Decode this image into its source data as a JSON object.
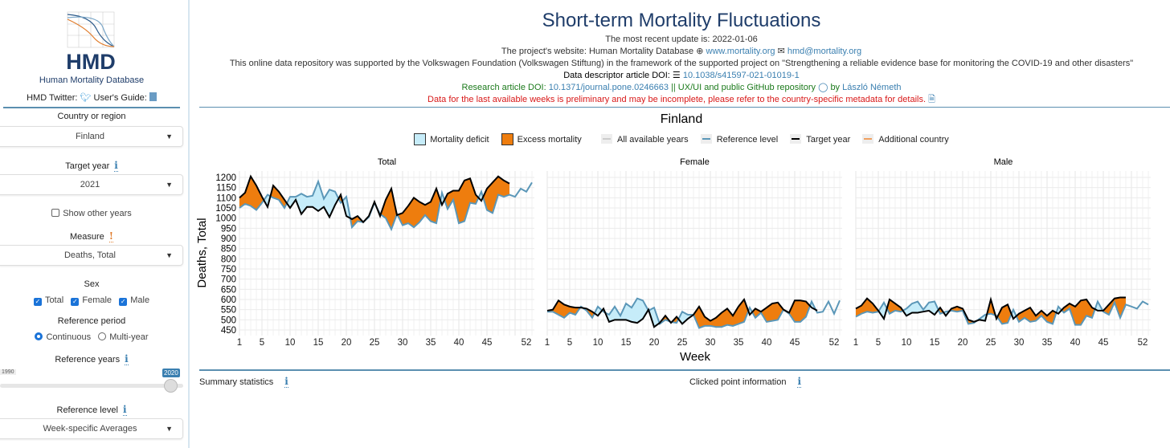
{
  "sidebar": {
    "logo_text": "HMD",
    "db_name": "Human Mortality Database",
    "twitter_label": "HMD Twitter:",
    "guide_label": "User's Guide:",
    "country_label": "Country or region",
    "country_value": "Finland",
    "target_year_label": "Target year",
    "target_year_value": "2021",
    "show_other_years": "Show other years",
    "measure_label": "Measure",
    "measure_value": "Deaths, Total",
    "sex_label": "Sex",
    "sex_total": "Total",
    "sex_female": "Female",
    "sex_male": "Male",
    "ref_period_label": "Reference period",
    "ref_continuous": "Continuous",
    "ref_multiyear": "Multi-year",
    "ref_years_label": "Reference years",
    "ref_years_min": "1990",
    "ref_years_max": "2020",
    "ref_level_label": "Reference level",
    "ref_level_value": "Week-specific Averages",
    "info_glyph": "i",
    "warn_glyph": "!"
  },
  "header": {
    "title": "Short-term Mortality Fluctuations",
    "update": "The most recent update is: 2022-01-06",
    "website_prefix": "The project's website: Human Mortality Database",
    "website": "www.mortality.org",
    "email": "hmd@mortality.org",
    "support": "This online data repository was supported by the Volkswagen Foundation (Volkswagen Stiftung) in the framework of the supported project on \"Strengthening a reliable evidence base for monitoring the COVID-19 and other disasters\"",
    "descriptor_label": "Data descriptor article DOI:",
    "descriptor_doi": "10.1038/s41597-021-01019-1",
    "research_label": "Research article DOI:",
    "research_doi": "10.1371/journal.pone.0246663",
    "repo_text": "|| UX/UI and public GitHub repository",
    "by": "by",
    "author": "László Németh",
    "warning": "Data for the last available weeks is preliminary and may be incomplete, please refer to the country-specific metadata for details."
  },
  "legend": {
    "deficit": "Mortality deficit",
    "excess": "Excess mortality",
    "all_years": "All available years",
    "reference": "Reference level",
    "target": "Target year",
    "additional": "Additional country"
  },
  "colors": {
    "deficit": "#c6ecf9",
    "excess": "#ee7d0e",
    "reference": "#5b97b8",
    "target": "#000000",
    "additional": "#f0a060",
    "all_years": "#cccccc"
  },
  "footer": {
    "summary": "Summary statistics",
    "clicked": "Clicked point information"
  },
  "chart_data": {
    "type": "line",
    "title": "Finland",
    "xlabel": "Week",
    "ylabel": "Deaths,  Total",
    "ylim": [
      430,
      1235
    ],
    "xlim": [
      1,
      53.4
    ],
    "yticks": [
      450,
      500,
      550,
      600,
      650,
      700,
      750,
      800,
      850,
      900,
      950,
      1000,
      1050,
      1100,
      1150,
      1200
    ],
    "xticks": [
      1,
      5,
      10,
      15,
      20,
      25,
      30,
      35,
      40,
      45,
      52
    ],
    "panels": [
      {
        "name": "Total",
        "target": [
          1100,
          1125,
          1205,
          1160,
          1105,
          1055,
          1160,
          1130,
          1090,
          1050,
          1090,
          1020,
          1055,
          1055,
          1035,
          1055,
          1005,
          1065,
          1115,
          1010,
          995,
          1010,
          980,
          1010,
          1080,
          1010,
          1090,
          1145,
          1015,
          1025,
          1060,
          1100,
          1080,
          1065,
          1080,
          1145,
          1065,
          1120,
          1135,
          1135,
          1185,
          1195,
          1115,
          1085,
          1145,
          1175,
          1205,
          1185,
          1170
        ],
        "reference": [
          1050,
          1070,
          1060,
          1040,
          1075,
          1115,
          1100,
          1090,
          1050,
          1105,
          1105,
          1120,
          1105,
          1110,
          1180,
          1095,
          1140,
          1130,
          1075,
          1105,
          955,
          985,
          980,
          1005,
          1075,
          1020,
          1000,
          945,
          1020,
          965,
          975,
          955,
          980,
          1015,
          985,
          975,
          1125,
          1045,
          1090,
          975,
          985,
          1075,
          1070,
          1130,
          1040,
          1025,
          1115,
          1105,
          1115,
          1105,
          1145,
          1130,
          1175
        ]
      },
      {
        "name": "Female",
        "target": [
          545,
          550,
          595,
          575,
          565,
          560,
          560,
          555,
          540,
          520,
          555,
          490,
          500,
          500,
          500,
          490,
          485,
          505,
          550,
          465,
          485,
          520,
          485,
          515,
          480,
          505,
          525,
          565,
          515,
          495,
          510,
          535,
          555,
          520,
          565,
          600,
          525,
          555,
          540,
          560,
          580,
          585,
          550,
          535,
          595,
          595,
          590,
          560,
          545
        ],
        "reference": [
          540,
          540,
          525,
          510,
          535,
          525,
          565,
          545,
          510,
          565,
          540,
          525,
          565,
          520,
          580,
          560,
          605,
          595,
          545,
          560,
          480,
          500,
          490,
          485,
          540,
          525,
          525,
          460,
          470,
          470,
          465,
          465,
          475,
          470,
          480,
          490,
          560,
          510,
          535,
          490,
          495,
          500,
          550,
          530,
          490,
          490,
          515,
          590,
          535,
          540,
          590,
          530,
          595
        ]
      },
      {
        "name": "Male",
        "target": [
          555,
          570,
          605,
          580,
          545,
          505,
          600,
          580,
          560,
          520,
          535,
          535,
          540,
          545,
          525,
          560,
          520,
          555,
          565,
          555,
          500,
          490,
          500,
          495,
          600,
          505,
          560,
          575,
          505,
          530,
          545,
          560,
          520,
          545,
          520,
          545,
          530,
          560,
          580,
          565,
          595,
          600,
          560,
          545,
          545,
          575,
          605,
          610,
          610
        ],
        "reference": [
          515,
          530,
          540,
          535,
          540,
          585,
          530,
          545,
          540,
          555,
          580,
          590,
          550,
          585,
          590,
          530,
          540,
          545,
          540,
          545,
          480,
          485,
          505,
          525,
          530,
          520,
          480,
          485,
          550,
          490,
          510,
          490,
          495,
          520,
          490,
          480,
          565,
          535,
          555,
          475,
          475,
          520,
          510,
          590,
          540,
          525,
          585,
          510,
          575,
          565,
          555,
          590,
          575
        ]
      }
    ]
  }
}
